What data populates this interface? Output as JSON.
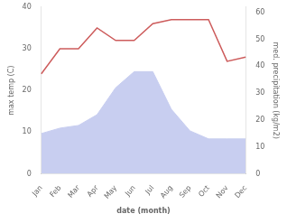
{
  "chart_data": {
    "type": "line",
    "xlabel": "date (month)",
    "ylabel": "max temp (C)",
    "y2label": "med. precipitation (kg/m2)",
    "categories": [
      "Jan",
      "Feb",
      "Mar",
      "Apr",
      "May",
      "Jun",
      "Jul",
      "Aug",
      "Sep",
      "Oct",
      "Nov",
      "Dec"
    ],
    "series": [
      {
        "type": "area",
        "axis": "y2",
        "color": "#c8cef0",
        "values": [
          15,
          17,
          18,
          22,
          32,
          38,
          38,
          24,
          16,
          13,
          13,
          13
        ]
      },
      {
        "type": "line",
        "axis": "y",
        "color": "#cd5c5c",
        "values": [
          24,
          30,
          30,
          35,
          32,
          32,
          36,
          37,
          37,
          37,
          27,
          28
        ]
      }
    ],
    "ylim": [
      0,
      40
    ],
    "yticks": [
      0,
      10,
      20,
      30,
      40
    ],
    "y2lim": [
      0,
      62
    ],
    "y2ticks": [
      0,
      10,
      20,
      30,
      40,
      50,
      60
    ],
    "grid": false
  }
}
